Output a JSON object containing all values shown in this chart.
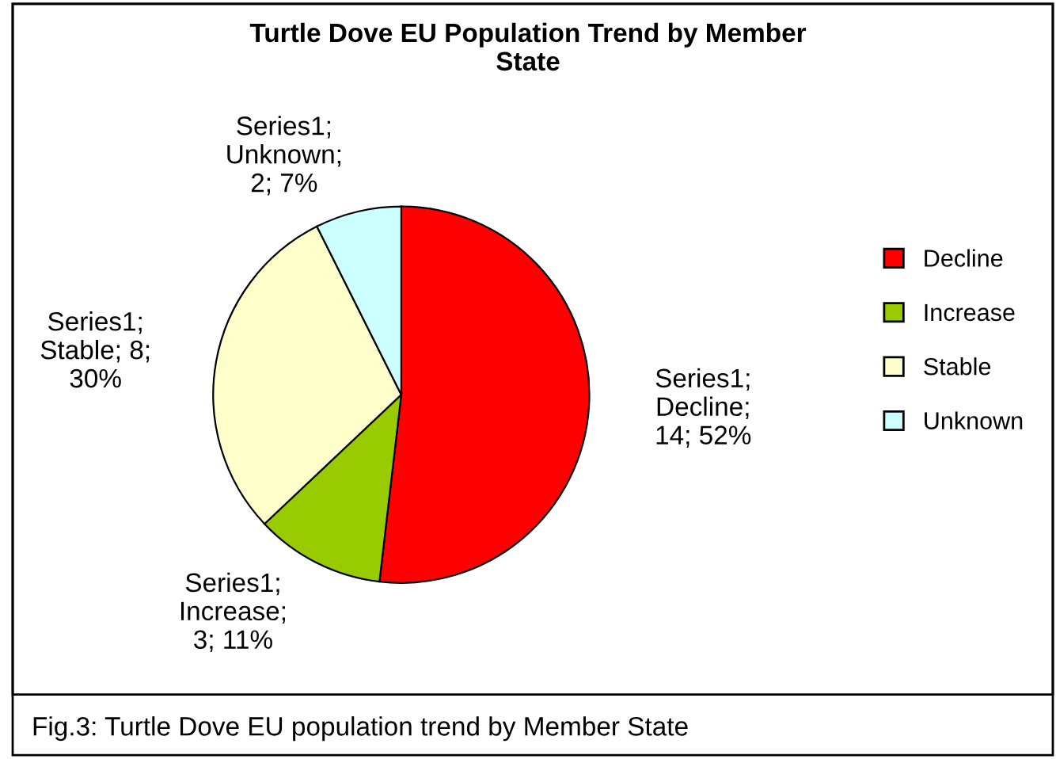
{
  "chart_data": {
    "type": "pie",
    "title": "Turtle Dove EU Population Trend by Member\nState",
    "categories": [
      "Decline",
      "Increase",
      "Stable",
      "Unknown"
    ],
    "values": [
      14,
      3,
      8,
      2
    ],
    "colors": [
      "#ff0000",
      "#99cc00",
      "#ffffcc",
      "#ccffff"
    ],
    "value_labels": [
      "Series1;\nDecline;\n14; 52%",
      "Series1;\nIncrease;\n3; 11%",
      "Series1;\nStable; 8;\n30%",
      "Series1;\nUnknown;\n2; 7%"
    ],
    "legend": "right",
    "annotations": [
      "Fig.3: Turtle Dove EU population trend by Member State"
    ]
  }
}
